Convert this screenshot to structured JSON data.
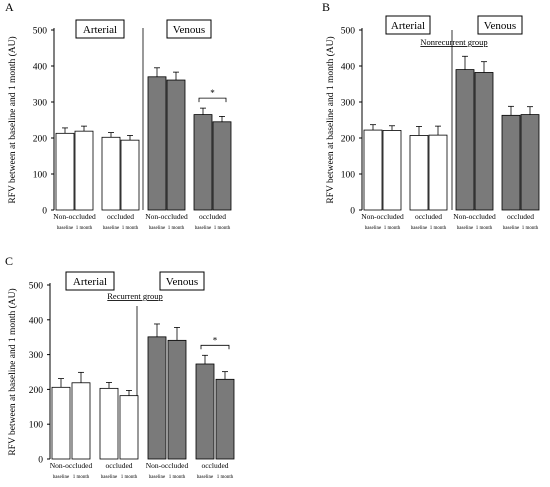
{
  "chart_data": [
    {
      "type": "bar",
      "panel_label": "A",
      "group_title": "",
      "ylabel": "RFV between at baseline and 1 month (AU)",
      "ylim": [
        0,
        500
      ],
      "yticks": [
        "0",
        "100",
        "200",
        "300",
        "400",
        "500"
      ],
      "box_labels": [
        "Arterial",
        "Venous"
      ],
      "sub_labels": [
        "baseline",
        "1 month"
      ],
      "groups": [
        "Non-occluded",
        "occluded",
        "Non-occluded",
        "occluded"
      ],
      "bars": [
        {
          "value": 213,
          "err": 15,
          "fill": "#ffffff"
        },
        {
          "value": 219,
          "err": 14,
          "fill": "#ffffff"
        },
        {
          "value": 202,
          "err": 13,
          "fill": "#ffffff"
        },
        {
          "value": 194,
          "err": 13,
          "fill": "#ffffff"
        },
        {
          "value": 370,
          "err": 25,
          "fill": "#7a7a7a"
        },
        {
          "value": 361,
          "err": 22,
          "fill": "#7a7a7a"
        },
        {
          "value": 265,
          "err": 18,
          "fill": "#7a7a7a"
        },
        {
          "value": 245,
          "err": 15,
          "fill": "#7a7a7a"
        }
      ],
      "significance": {
        "marker": "*",
        "from": 6,
        "to": 7
      }
    },
    {
      "type": "bar",
      "panel_label": "B",
      "group_title": "Nonrecurrent group",
      "ylabel": "RFV between at baseline and 1 month (AU)",
      "ylim": [
        0,
        500
      ],
      "yticks": [
        "0",
        "100",
        "200",
        "300",
        "400",
        "500"
      ],
      "box_labels": [
        "Arterial",
        "Venous"
      ],
      "sub_labels": [
        "baseline",
        "1 month"
      ],
      "groups": [
        "Non-occluded",
        "occluded",
        "Non-occluded",
        "occluded"
      ],
      "bars": [
        {
          "value": 222,
          "err": 15,
          "fill": "#ffffff"
        },
        {
          "value": 221,
          "err": 13,
          "fill": "#ffffff"
        },
        {
          "value": 207,
          "err": 25,
          "fill": "#ffffff"
        },
        {
          "value": 208,
          "err": 25,
          "fill": "#ffffff"
        },
        {
          "value": 390,
          "err": 37,
          "fill": "#7a7a7a"
        },
        {
          "value": 382,
          "err": 30,
          "fill": "#7a7a7a"
        },
        {
          "value": 263,
          "err": 25,
          "fill": "#7a7a7a"
        },
        {
          "value": 265,
          "err": 22,
          "fill": "#7a7a7a"
        }
      ],
      "significance": null
    },
    {
      "type": "bar",
      "panel_label": "C",
      "group_title": "Recurrent group",
      "ylabel": "RFV between at baseline and 1 month (AU)",
      "ylim": [
        0,
        500
      ],
      "yticks": [
        "0",
        "100",
        "200",
        "300",
        "400",
        "500"
      ],
      "box_labels": [
        "Arterial",
        "Venous"
      ],
      "sub_labels": [
        "baseline",
        "1 month"
      ],
      "groups": [
        "Non-occluded",
        "occluded",
        "Non-occluded",
        "occluded"
      ],
      "bars": [
        {
          "value": 206,
          "err": 25,
          "fill": "#ffffff"
        },
        {
          "value": 219,
          "err": 30,
          "fill": "#ffffff"
        },
        {
          "value": 203,
          "err": 17,
          "fill": "#ffffff"
        },
        {
          "value": 182,
          "err": 15,
          "fill": "#ffffff"
        },
        {
          "value": 351,
          "err": 37,
          "fill": "#7a7a7a"
        },
        {
          "value": 341,
          "err": 37,
          "fill": "#7a7a7a"
        },
        {
          "value": 273,
          "err": 25,
          "fill": "#7a7a7a"
        },
        {
          "value": 229,
          "err": 22,
          "fill": "#7a7a7a"
        }
      ],
      "significance": {
        "marker": "*",
        "from": 6,
        "to": 7
      }
    }
  ]
}
